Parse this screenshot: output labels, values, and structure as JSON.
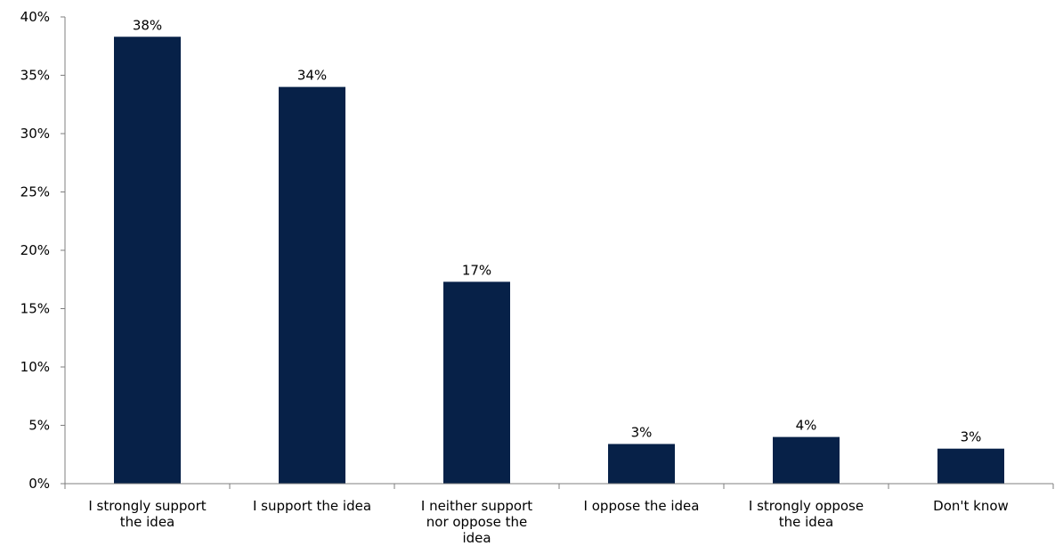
{
  "chart_data": {
    "type": "bar",
    "title": "",
    "xlabel": "",
    "ylabel": "",
    "ylim": [
      0,
      40
    ],
    "yticks": [
      0,
      5,
      10,
      15,
      20,
      25,
      30,
      35,
      40
    ],
    "ytick_suffix": "%",
    "grid": false,
    "legend": "none",
    "bar_color": "#072148",
    "categories": [
      [
        "I strongly support",
        "the idea"
      ],
      [
        "I support the idea"
      ],
      [
        "I neither support",
        "nor oppose the",
        "idea"
      ],
      [
        "I oppose the idea"
      ],
      [
        "I strongly oppose",
        "the idea"
      ],
      [
        "Don't know"
      ]
    ],
    "values": [
      38.3,
      34.0,
      17.3,
      3.4,
      4.0,
      3.0
    ],
    "data_labels": [
      "38%",
      "34%",
      "17%",
      "3%",
      "4%",
      "3%"
    ]
  }
}
